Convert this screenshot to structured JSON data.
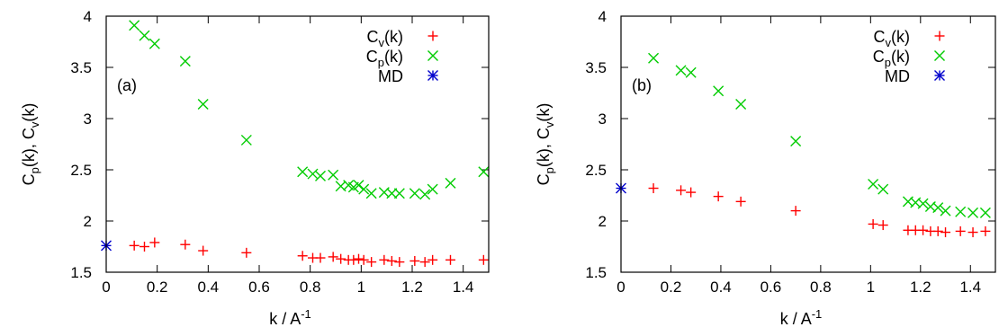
{
  "chart_data": [
    {
      "type": "scatter",
      "panel_label": "(a)",
      "xlabel": "k / A",
      "xlabel_sup": "-1",
      "ylabel": "C",
      "ylabel_parts": [
        "C",
        "p",
        "(k), C",
        "v",
        "(k)"
      ],
      "xlim": [
        0,
        1.5
      ],
      "ylim": [
        1.5,
        4
      ],
      "xticks": [
        "0",
        "0.2",
        "0.4",
        "0.6",
        "0.8",
        "1",
        "1.2",
        "1.4"
      ],
      "yticks": [
        "1.5",
        "2",
        "2.5",
        "3",
        "3.5",
        "4"
      ],
      "legend_position": "top-right",
      "series": [
        {
          "name": "Cv(k)",
          "legend_main": "C",
          "legend_sub": "v",
          "legend_tail": "(k)",
          "color": "#ff0000",
          "marker": "plus",
          "x": [
            0.11,
            0.15,
            0.19,
            0.31,
            0.38,
            0.55,
            0.77,
            0.81,
            0.84,
            0.89,
            0.92,
            0.95,
            0.97,
            0.99,
            1.01,
            1.04,
            1.09,
            1.12,
            1.15,
            1.21,
            1.25,
            1.28,
            1.35,
            1.48
          ],
          "y": [
            1.76,
            1.75,
            1.79,
            1.77,
            1.71,
            1.69,
            1.66,
            1.64,
            1.64,
            1.65,
            1.63,
            1.62,
            1.62,
            1.63,
            1.62,
            1.6,
            1.62,
            1.61,
            1.6,
            1.61,
            1.6,
            1.62,
            1.62,
            1.62
          ]
        },
        {
          "name": "Cp(k)",
          "legend_main": "C",
          "legend_sub": "p",
          "legend_tail": "(k)",
          "color": "#00cc00",
          "marker": "cross",
          "x": [
            0.11,
            0.15,
            0.19,
            0.31,
            0.38,
            0.55,
            0.77,
            0.81,
            0.84,
            0.89,
            0.92,
            0.95,
            0.97,
            0.99,
            1.01,
            1.04,
            1.09,
            1.12,
            1.15,
            1.21,
            1.25,
            1.28,
            1.35,
            1.48
          ],
          "y": [
            3.91,
            3.81,
            3.73,
            3.56,
            3.14,
            2.79,
            2.48,
            2.46,
            2.44,
            2.45,
            2.34,
            2.35,
            2.33,
            2.35,
            2.31,
            2.27,
            2.28,
            2.27,
            2.27,
            2.27,
            2.26,
            2.31,
            2.37,
            2.48
          ]
        },
        {
          "name": "MD",
          "legend_main": "MD",
          "legend_sub": "",
          "legend_tail": "",
          "color": "#0000cc",
          "marker": "star",
          "x": [
            0
          ],
          "y": [
            1.76
          ]
        }
      ]
    },
    {
      "type": "scatter",
      "panel_label": "(b)",
      "xlabel": "k / A",
      "xlabel_sup": "-1",
      "ylabel": "C",
      "ylabel_parts": [
        "C",
        "p",
        "(k), C",
        "v",
        "(k)"
      ],
      "xlim": [
        0,
        1.5
      ],
      "ylim": [
        1.5,
        4
      ],
      "xticks": [
        "0",
        "0.2",
        "0.4",
        "0.6",
        "0.8",
        "1",
        "1.2",
        "1.4"
      ],
      "yticks": [
        "1.5",
        "2",
        "2.5",
        "3",
        "3.5",
        "4"
      ],
      "legend_position": "top-right",
      "series": [
        {
          "name": "Cv(k)",
          "legend_main": "C",
          "legend_sub": "v",
          "legend_tail": "(k)",
          "color": "#ff0000",
          "marker": "plus",
          "x": [
            0.13,
            0.24,
            0.28,
            0.39,
            0.48,
            0.7,
            1.01,
            1.05,
            1.15,
            1.18,
            1.21,
            1.24,
            1.27,
            1.3,
            1.36,
            1.41,
            1.46
          ],
          "y": [
            2.32,
            2.3,
            2.28,
            2.24,
            2.19,
            2.1,
            1.97,
            1.96,
            1.91,
            1.91,
            1.91,
            1.9,
            1.9,
            1.89,
            1.9,
            1.89,
            1.9
          ]
        },
        {
          "name": "Cp(k)",
          "legend_main": "C",
          "legend_sub": "p",
          "legend_tail": "(k)",
          "color": "#00cc00",
          "marker": "cross",
          "x": [
            0.13,
            0.24,
            0.28,
            0.39,
            0.48,
            0.7,
            1.01,
            1.05,
            1.15,
            1.18,
            1.21,
            1.24,
            1.27,
            1.3,
            1.36,
            1.41,
            1.46
          ],
          "y": [
            3.59,
            3.47,
            3.45,
            3.27,
            3.14,
            2.78,
            2.36,
            2.31,
            2.19,
            2.18,
            2.17,
            2.14,
            2.13,
            2.1,
            2.09,
            2.08,
            2.08
          ]
        },
        {
          "name": "MD",
          "legend_main": "MD",
          "legend_sub": "",
          "legend_tail": "",
          "color": "#0000cc",
          "marker": "star",
          "x": [
            0
          ],
          "y": [
            2.32
          ]
        }
      ]
    }
  ]
}
